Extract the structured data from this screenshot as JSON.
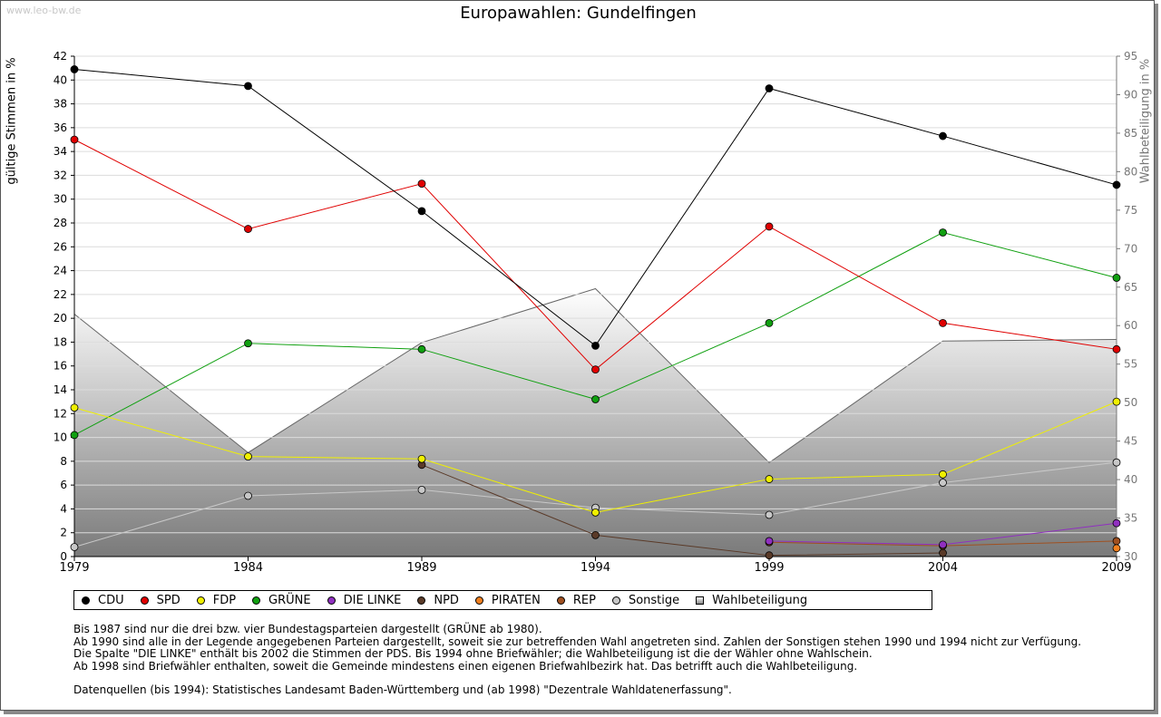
{
  "watermark": "www.leo-bw.de",
  "chart_data": {
    "type": "line",
    "title": "Europawahlen: Gundelfingen",
    "ylabel": "gültige Stimmen in %",
    "y2label": "Wahlbeteiligung in %",
    "x": [
      "1979",
      "1984",
      "1989",
      "1994",
      "1999",
      "2004",
      "2009"
    ],
    "ylim": [
      0,
      42
    ],
    "yticks": [
      0,
      2,
      4,
      6,
      8,
      10,
      12,
      14,
      16,
      18,
      20,
      22,
      24,
      26,
      28,
      30,
      32,
      34,
      36,
      38,
      40,
      42
    ],
    "y2lim": [
      30,
      95
    ],
    "y2ticks": [
      30,
      35,
      40,
      45,
      50,
      55,
      60,
      65,
      70,
      75,
      80,
      85,
      90,
      95
    ],
    "grid": true,
    "legend_position": "bottom",
    "series": [
      {
        "name": "CDU",
        "color": "#000000",
        "values": [
          40.9,
          39.5,
          29.0,
          17.7,
          39.3,
          35.3,
          31.2
        ]
      },
      {
        "name": "SPD",
        "color": "#e00000",
        "values": [
          35.0,
          27.5,
          31.3,
          15.7,
          27.7,
          19.6,
          17.4
        ]
      },
      {
        "name": "FDP",
        "color": "#f0f000",
        "values": [
          12.5,
          8.4,
          8.2,
          3.7,
          6.5,
          6.9,
          13.0
        ]
      },
      {
        "name": "GRÜNE",
        "color": "#10a010",
        "values": [
          10.2,
          17.9,
          17.4,
          13.2,
          19.6,
          27.2,
          23.4
        ]
      },
      {
        "name": "DIE LINKE",
        "color": "#9030c0",
        "values": [
          null,
          null,
          null,
          null,
          1.3,
          1.0,
          2.8
        ]
      },
      {
        "name": "NPD",
        "color": "#5a3a28",
        "values": [
          null,
          null,
          7.7,
          1.8,
          0.1,
          0.3,
          null
        ]
      },
      {
        "name": "PIRATEN",
        "color": "#f08020",
        "values": [
          null,
          null,
          null,
          null,
          null,
          null,
          0.7
        ]
      },
      {
        "name": "REP",
        "color": "#a05020",
        "values": [
          null,
          null,
          null,
          null,
          1.2,
          0.9,
          1.3
        ]
      },
      {
        "name": "Sonstige",
        "color": "#c8c8c8",
        "values": [
          0.8,
          5.1,
          5.6,
          4.1,
          3.5,
          6.2,
          7.9
        ]
      }
    ],
    "turnout": {
      "name": "Wahlbeteiligung",
      "axis": "right",
      "values": [
        61.5,
        43.5,
        57.8,
        64.8,
        42.2,
        58.0,
        58.2
      ]
    }
  },
  "notes": [
    "Bis 1987 sind nur die drei bzw. vier Bundestagsparteien dargestellt (GRÜNE ab 1980).",
    "Ab 1990 sind alle in der Legende angegebenen Parteien dargestellt, soweit sie zur betreffenden Wahl angetreten sind. Zahlen der Sonstigen stehen 1990 und 1994 nicht zur Verfügung.",
    "Die Spalte \"DIE LINKE\" enthält bis 2002 die Stimmen der PDS. Bis 1994 ohne Briefwähler; die Wahlbeteiligung ist die der Wähler ohne Wahlschein.",
    "Ab 1998 sind Briefwähler enthalten, soweit die Gemeinde mindestens einen eigenen Briefwahlbezirk hat. Das betrifft auch die Wahlbeteiligung."
  ],
  "source": "Datenquellen (bis 1994): Statistisches Landesamt Baden-Württemberg und (ab 1998) \"Dezentrale Wahldatenerfassung\"."
}
